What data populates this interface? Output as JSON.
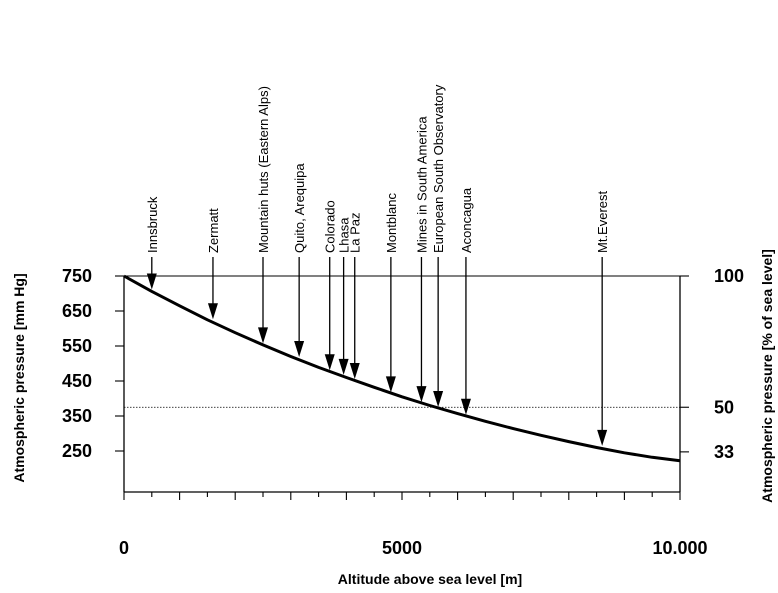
{
  "chart_data": {
    "type": "line",
    "title": "",
    "xlabel": "Altitude above sea level  [m]",
    "ylabel_left": "Atmospheric pressure  [mm Hg]",
    "ylabel_right": "Atmospheric pressure  [% of sea level]",
    "xlim": [
      0,
      10000
    ],
    "ylim": [
      220,
      750
    ],
    "x_ticks": [
      {
        "value": 0,
        "label": "0"
      },
      {
        "value": 5000,
        "label": "5000"
      },
      {
        "value": 10000,
        "label": "10.000"
      }
    ],
    "x_minor_step": 500,
    "y_ticks_left": [
      {
        "value": 750,
        "label": "750"
      },
      {
        "value": 650,
        "label": "650"
      },
      {
        "value": 550,
        "label": "550"
      },
      {
        "value": 450,
        "label": "450"
      },
      {
        "value": 350,
        "label": "350"
      },
      {
        "value": 250,
        "label": "250"
      }
    ],
    "y_ticks_right": [
      {
        "value": 750,
        "label": "100"
      },
      {
        "value": 375,
        "label": "50"
      },
      {
        "value": 247.5,
        "label": "33"
      }
    ],
    "reference_lines": [
      {
        "y": 750,
        "style": "solid"
      },
      {
        "y": 375,
        "style": "dotted"
      }
    ],
    "series": [
      {
        "x": [
          0,
          500,
          1000,
          1500,
          2000,
          2500,
          3000,
          3500,
          4000,
          4500,
          5000,
          5500,
          6000,
          6500,
          7000,
          7500,
          8000,
          8500,
          9000,
          9500,
          10000
        ],
        "y": [
          750,
          706,
          665,
          625,
          588,
          553,
          520,
          489,
          460,
          432,
          405,
          380,
          357,
          335,
          314,
          295,
          277,
          260,
          245,
          232,
          222
        ]
      }
    ],
    "annotations": [
      {
        "label": "Innsbruck",
        "x": 500,
        "y": 703
      },
      {
        "label": "Zermatt",
        "x": 1600,
        "y": 618
      },
      {
        "label": "Mountain huts (Eastern Alps)",
        "x": 2500,
        "y": 549
      },
      {
        "label": "Quito, Arequipa",
        "x": 3150,
        "y": 510
      },
      {
        "label": "Colorado",
        "x": 3700,
        "y": 472
      },
      {
        "label": "Lhasa",
        "x": 3950,
        "y": 459
      },
      {
        "label": "La Paz",
        "x": 4150,
        "y": 447
      },
      {
        "label": "Montblanc",
        "x": 4800,
        "y": 409
      },
      {
        "label": "Mines in South America",
        "x": 5350,
        "y": 381
      },
      {
        "label": "European South Observatory",
        "x": 5650,
        "y": 367
      },
      {
        "label": "Aconcagua",
        "x": 6150,
        "y": 345
      },
      {
        "label": "Mt.Everest",
        "x": 8600,
        "y": 256
      }
    ]
  }
}
